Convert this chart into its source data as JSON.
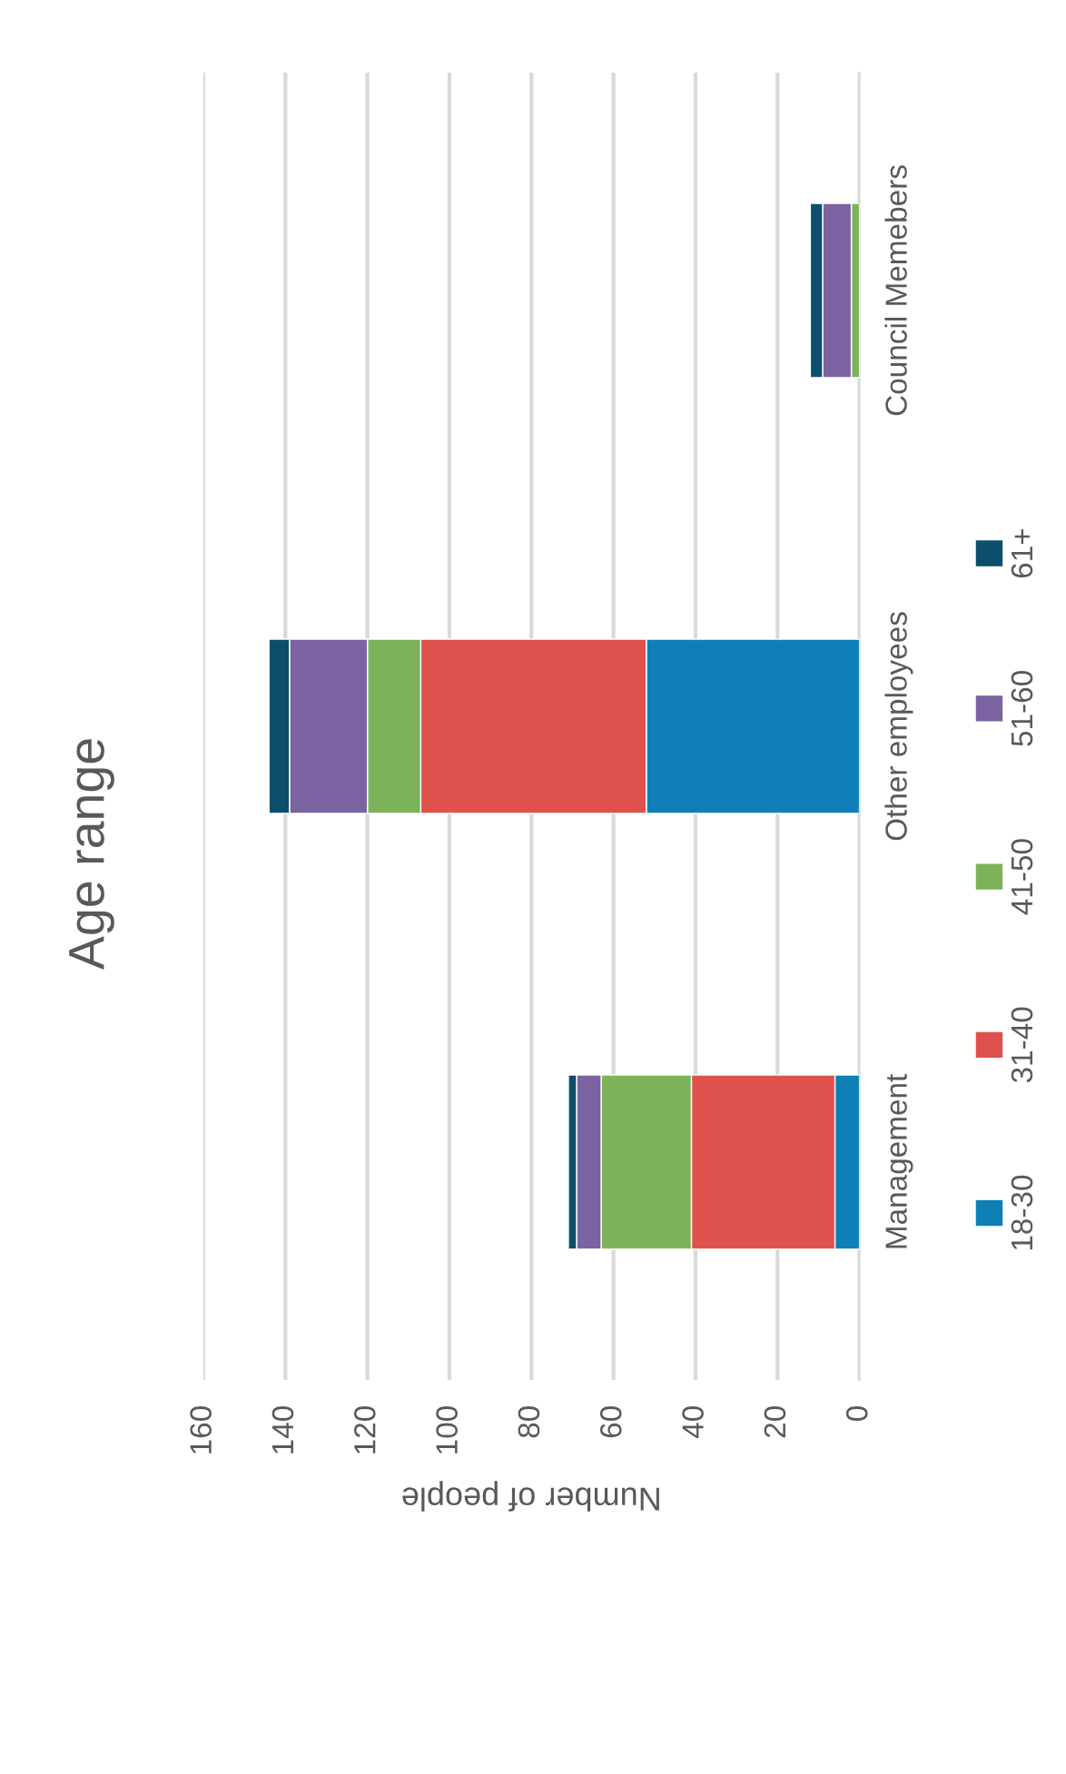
{
  "chart_data": {
    "type": "bar",
    "orientation": "horizontal",
    "stacked": true,
    "title": "Age range",
    "xlabel": "Number of people",
    "categories": [
      "Council Memebers",
      "Other employees",
      "Management"
    ],
    "series": [
      {
        "name": "18-30",
        "color": "#0f7fb8",
        "values": [
          0,
          52,
          6
        ]
      },
      {
        "name": "31-40",
        "color": "#de514c",
        "values": [
          0,
          55,
          35
        ]
      },
      {
        "name": "41-50",
        "color": "#7cb35a",
        "values": [
          2,
          13,
          22
        ]
      },
      {
        "name": "51-60",
        "color": "#7a63a0",
        "values": [
          7,
          19,
          6
        ]
      },
      {
        "name": "61+",
        "color": "#0b4f6c",
        "values": [
          3,
          5,
          2
        ]
      }
    ],
    "xlim": [
      160,
      0
    ],
    "xticks": [
      160,
      140,
      120,
      100,
      80,
      60,
      40,
      20,
      0
    ],
    "grid": "x",
    "legend": "right"
  }
}
